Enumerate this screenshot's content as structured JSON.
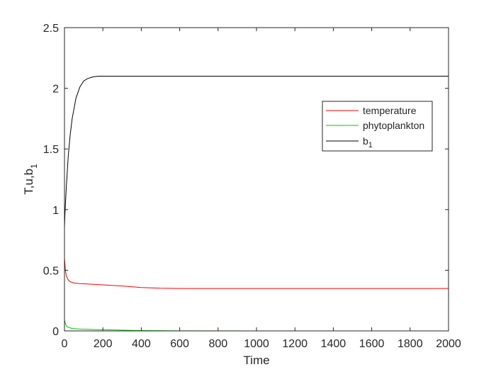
{
  "chart_data": {
    "type": "line",
    "xlabel": "Time",
    "ylabel": "T,u,b",
    "ylabel_subscript": "1",
    "xlim": [
      0,
      2000
    ],
    "ylim": [
      0,
      2.5
    ],
    "xticks": [
      0,
      200,
      400,
      600,
      800,
      1000,
      1200,
      1400,
      1600,
      1800,
      2000
    ],
    "yticks": [
      0,
      0.5,
      1,
      1.5,
      2,
      2.5
    ],
    "xtick_labels": [
      "0",
      "200",
      "400",
      "600",
      "800",
      "1000",
      "1200",
      "1400",
      "1600",
      "1800",
      "2000"
    ],
    "ytick_labels": [
      "0",
      "0.5",
      "1",
      "1.5",
      "2",
      "2.5"
    ],
    "grid": false,
    "legend_position": "top-right",
    "series": [
      {
        "name": "temperature",
        "color": "#ff0000",
        "x": [
          0,
          5,
          10,
          20,
          30,
          50,
          80,
          120,
          200,
          300,
          400,
          500,
          600,
          800,
          1000,
          1400,
          2000
        ],
        "y": [
          0.6,
          0.5,
          0.45,
          0.42,
          0.405,
          0.395,
          0.39,
          0.387,
          0.38,
          0.37,
          0.358,
          0.352,
          0.35,
          0.35,
          0.35,
          0.35,
          0.35
        ]
      },
      {
        "name": "phytoplankton",
        "color": "#00cc00",
        "x": [
          0,
          5,
          10,
          20,
          40,
          80,
          150,
          250,
          400,
          600,
          1000,
          2000
        ],
        "y": [
          0.09,
          0.06,
          0.04,
          0.03,
          0.02,
          0.015,
          0.012,
          0.008,
          0.003,
          0.001,
          0.0,
          0.0
        ]
      },
      {
        "name": "b",
        "name_subscript": "1",
        "color": "#000000",
        "x": [
          0,
          2,
          5,
          10,
          20,
          30,
          40,
          60,
          80,
          100,
          120,
          150,
          180,
          200,
          300,
          500,
          1000,
          2000
        ],
        "y": [
          0.85,
          0.95,
          1.05,
          1.2,
          1.45,
          1.62,
          1.75,
          1.92,
          2.01,
          2.06,
          2.08,
          2.095,
          2.1,
          2.1,
          2.1,
          2.1,
          2.1,
          2.1
        ]
      }
    ]
  }
}
